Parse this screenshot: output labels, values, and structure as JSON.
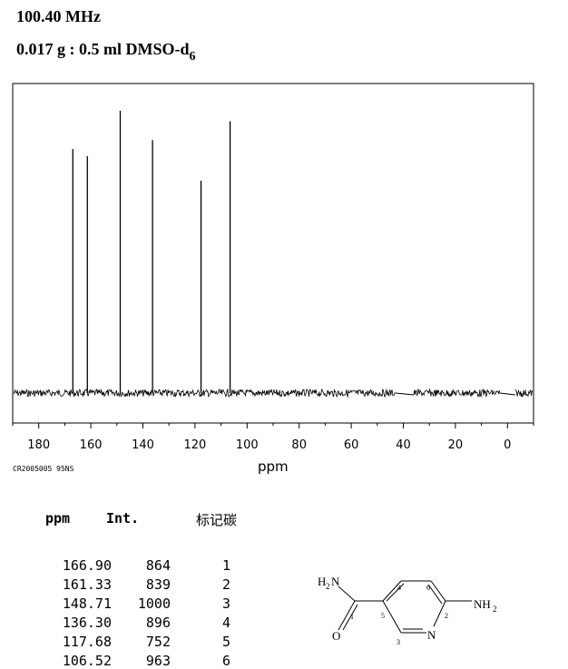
{
  "header": {
    "frequency": "100.40 MHz",
    "sample_main": "0.017 g : 0.5 ml DMSO-d",
    "sample_sub": "6"
  },
  "spectrum_code": "CR2005005 95NS",
  "chart_data": {
    "type": "bar",
    "title": "",
    "xlabel": "ppm",
    "ylabel": "",
    "x_axis_reversed": true,
    "xlim": [
      190,
      -10
    ],
    "x_ticks": [
      180,
      160,
      140,
      120,
      100,
      80,
      60,
      40,
      20,
      0
    ],
    "y_range": [
      0,
      1000
    ],
    "grid": false,
    "peaks": [
      {
        "ppm": 166.9,
        "intensity": 864
      },
      {
        "ppm": 161.33,
        "intensity": 839
      },
      {
        "ppm": 148.71,
        "intensity": 1000
      },
      {
        "ppm": 136.3,
        "intensity": 896
      },
      {
        "ppm": 117.68,
        "intensity": 752
      },
      {
        "ppm": 106.52,
        "intensity": 963
      }
    ],
    "baseline_gaps_ppm": [
      [
        43,
        36
      ],
      [
        3,
        -3
      ]
    ]
  },
  "table": {
    "headers": {
      "ppm": "ppm",
      "int": "Int.",
      "carbon": "标记碳"
    },
    "rows": [
      {
        "ppm": "166.90",
        "int": "864",
        "carbon": "1"
      },
      {
        "ppm": "161.33",
        "int": "839",
        "carbon": "2"
      },
      {
        "ppm": "148.71",
        "int": "1000",
        "carbon": "3"
      },
      {
        "ppm": "136.30",
        "int": "896",
        "carbon": "4"
      },
      {
        "ppm": "117.68",
        "int": "752",
        "carbon": "5"
      },
      {
        "ppm": "106.52",
        "int": "963",
        "carbon": "6"
      }
    ]
  },
  "structure": {
    "amide_n": "N",
    "amide_h": "H",
    "amide_h_sub": "2",
    "oxygen": "O",
    "ring_n": "N",
    "amine": "NH",
    "amine_sub": "2",
    "atom_numbers": [
      "1",
      "2",
      "3",
      "4",
      "5",
      "6"
    ]
  }
}
